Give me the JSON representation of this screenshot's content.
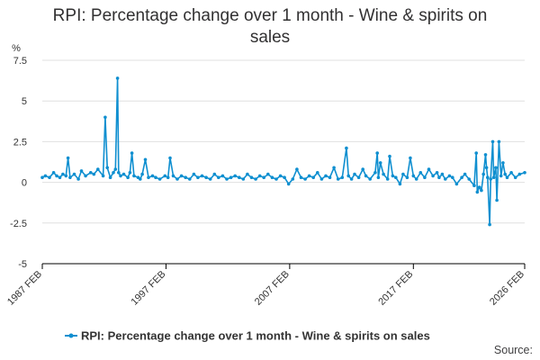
{
  "title_line1": "RPI: Percentage change over 1 month - Wine & spirits on",
  "title_line2": "sales",
  "source_label": "Source:",
  "colors": {
    "series": "#0f8fd0",
    "grid": "#e0e0e0",
    "axis": "#000000",
    "text": "#323132"
  },
  "chart_data": {
    "type": "line",
    "title": "RPI: Percentage change over 1 month - Wine & spirits on sales",
    "ylabel": "%",
    "ylim": [
      -5,
      7.5
    ],
    "yticks": [
      {
        "value": 7.5,
        "label": "7.5"
      },
      {
        "value": 5,
        "label": "5"
      },
      {
        "value": 2.5,
        "label": "2.5"
      },
      {
        "value": 0,
        "label": "0"
      },
      {
        "value": -2.5,
        "label": "-2.5"
      },
      {
        "value": -5,
        "label": "-5"
      }
    ],
    "xlim": [
      "1987-02",
      "2026-02"
    ],
    "xticks": [
      "1987 FEB",
      "1997 FEB",
      "2007 FEB",
      "2017 FEB",
      "2026 FEB"
    ],
    "grid": true,
    "legend": "bottom",
    "series": [
      {
        "name": "RPI: Percentage change over 1 month - Wine & spirits on sales",
        "points": [
          [
            "1987-02",
            0.3
          ],
          [
            "1987-05",
            0.4
          ],
          [
            "1987-09",
            0.3
          ],
          [
            "1988-01",
            0.6
          ],
          [
            "1988-04",
            0.4
          ],
          [
            "1988-07",
            0.3
          ],
          [
            "1988-10",
            0.5
          ],
          [
            "1989-01",
            0.4
          ],
          [
            "1989-03",
            1.5
          ],
          [
            "1989-05",
            0.3
          ],
          [
            "1989-09",
            0.5
          ],
          [
            "1990-01",
            0.2
          ],
          [
            "1990-04",
            0.7
          ],
          [
            "1990-08",
            0.4
          ],
          [
            "1991-01",
            0.6
          ],
          [
            "1991-04",
            0.5
          ],
          [
            "1991-08",
            0.8
          ],
          [
            "1992-01",
            0.4
          ],
          [
            "1992-03",
            4.0
          ],
          [
            "1992-05",
            0.9
          ],
          [
            "1992-08",
            0.3
          ],
          [
            "1992-11",
            0.6
          ],
          [
            "1993-01",
            0.8
          ],
          [
            "1993-03",
            6.4
          ],
          [
            "1993-04",
            0.6
          ],
          [
            "1993-06",
            0.4
          ],
          [
            "1993-09",
            0.5
          ],
          [
            "1994-01",
            0.3
          ],
          [
            "1994-03",
            0.6
          ],
          [
            "1994-05",
            1.8
          ],
          [
            "1994-07",
            0.4
          ],
          [
            "1994-11",
            0.3
          ],
          [
            "1995-01",
            0.2
          ],
          [
            "1995-03",
            0.5
          ],
          [
            "1995-06",
            1.4
          ],
          [
            "1995-09",
            0.3
          ],
          [
            "1996-01",
            0.4
          ],
          [
            "1996-04",
            0.3
          ],
          [
            "1996-08",
            0.2
          ],
          [
            "1997-01",
            0.4
          ],
          [
            "1997-04",
            0.3
          ],
          [
            "1997-06",
            1.5
          ],
          [
            "1997-09",
            0.4
          ],
          [
            "1998-01",
            0.2
          ],
          [
            "1998-05",
            0.4
          ],
          [
            "1998-09",
            0.3
          ],
          [
            "1999-01",
            0.2
          ],
          [
            "1999-05",
            0.5
          ],
          [
            "1999-09",
            0.3
          ],
          [
            "2000-01",
            0.4
          ],
          [
            "2000-05",
            0.3
          ],
          [
            "2000-09",
            0.2
          ],
          [
            "2001-01",
            0.5
          ],
          [
            "2001-05",
            0.3
          ],
          [
            "2001-09",
            0.4
          ],
          [
            "2002-01",
            0.2
          ],
          [
            "2002-05",
            0.3
          ],
          [
            "2002-09",
            0.4
          ],
          [
            "2003-01",
            0.3
          ],
          [
            "2003-05",
            0.2
          ],
          [
            "2003-09",
            0.5
          ],
          [
            "2004-01",
            0.3
          ],
          [
            "2004-05",
            0.2
          ],
          [
            "2004-09",
            0.4
          ],
          [
            "2005-01",
            0.3
          ],
          [
            "2005-05",
            0.5
          ],
          [
            "2005-09",
            0.3
          ],
          [
            "2006-01",
            0.2
          ],
          [
            "2006-05",
            0.4
          ],
          [
            "2006-09",
            0.3
          ],
          [
            "2007-01",
            -0.1
          ],
          [
            "2007-05",
            0.2
          ],
          [
            "2007-09",
            0.8
          ],
          [
            "2008-01",
            0.3
          ],
          [
            "2008-05",
            0.2
          ],
          [
            "2008-09",
            0.4
          ],
          [
            "2009-01",
            0.3
          ],
          [
            "2009-05",
            0.6
          ],
          [
            "2009-09",
            0.2
          ],
          [
            "2010-01",
            0.4
          ],
          [
            "2010-05",
            0.3
          ],
          [
            "2010-09",
            0.9
          ],
          [
            "2011-01",
            0.2
          ],
          [
            "2011-05",
            0.3
          ],
          [
            "2011-09",
            2.1
          ],
          [
            "2011-11",
            0.4
          ],
          [
            "2012-02",
            0.2
          ],
          [
            "2012-05",
            0.5
          ],
          [
            "2012-09",
            0.3
          ],
          [
            "2013-01",
            0.8
          ],
          [
            "2013-04",
            0.4
          ],
          [
            "2013-08",
            0.2
          ],
          [
            "2014-01",
            0.6
          ],
          [
            "2014-03",
            1.8
          ],
          [
            "2014-04",
            0.3
          ],
          [
            "2014-06",
            1.2
          ],
          [
            "2014-09",
            0.5
          ],
          [
            "2015-01",
            0.2
          ],
          [
            "2015-03",
            1.6
          ],
          [
            "2015-06",
            0.4
          ],
          [
            "2015-09",
            0.3
          ],
          [
            "2016-01",
            -0.1
          ],
          [
            "2016-04",
            0.5
          ],
          [
            "2016-08",
            0.3
          ],
          [
            "2016-11",
            1.5
          ],
          [
            "2017-02",
            0.4
          ],
          [
            "2017-05",
            0.2
          ],
          [
            "2017-09",
            0.6
          ],
          [
            "2018-01",
            0.3
          ],
          [
            "2018-05",
            0.8
          ],
          [
            "2018-09",
            0.4
          ],
          [
            "2019-01",
            0.6
          ],
          [
            "2019-03",
            0.3
          ],
          [
            "2019-06",
            0.5
          ],
          [
            "2019-09",
            0.2
          ],
          [
            "2020-01",
            0.4
          ],
          [
            "2020-04",
            0.3
          ],
          [
            "2020-08",
            -0.1
          ],
          [
            "2021-01",
            0.3
          ],
          [
            "2021-04",
            0.5
          ],
          [
            "2021-08",
            0.2
          ],
          [
            "2022-01",
            -0.2
          ],
          [
            "2022-03",
            1.8
          ],
          [
            "2022-04",
            -0.6
          ],
          [
            "2022-06",
            -0.3
          ],
          [
            "2022-08",
            -0.5
          ],
          [
            "2022-10",
            0.5
          ],
          [
            "2022-12",
            1.7
          ],
          [
            "2023-01",
            0.9
          ],
          [
            "2023-02",
            0.3
          ],
          [
            "2023-04",
            -2.6
          ],
          [
            "2023-05",
            0.2
          ],
          [
            "2023-07",
            2.5
          ],
          [
            "2023-08",
            0.3
          ],
          [
            "2023-10",
            0.9
          ],
          [
            "2023-11",
            -1.1
          ],
          [
            "2024-01",
            2.5
          ],
          [
            "2024-03",
            0.4
          ],
          [
            "2024-05",
            1.2
          ],
          [
            "2024-07",
            0.5
          ],
          [
            "2024-09",
            0.3
          ],
          [
            "2025-01",
            0.6
          ],
          [
            "2025-05",
            0.3
          ],
          [
            "2025-09",
            0.5
          ],
          [
            "2026-02",
            0.6
          ]
        ]
      }
    ]
  }
}
